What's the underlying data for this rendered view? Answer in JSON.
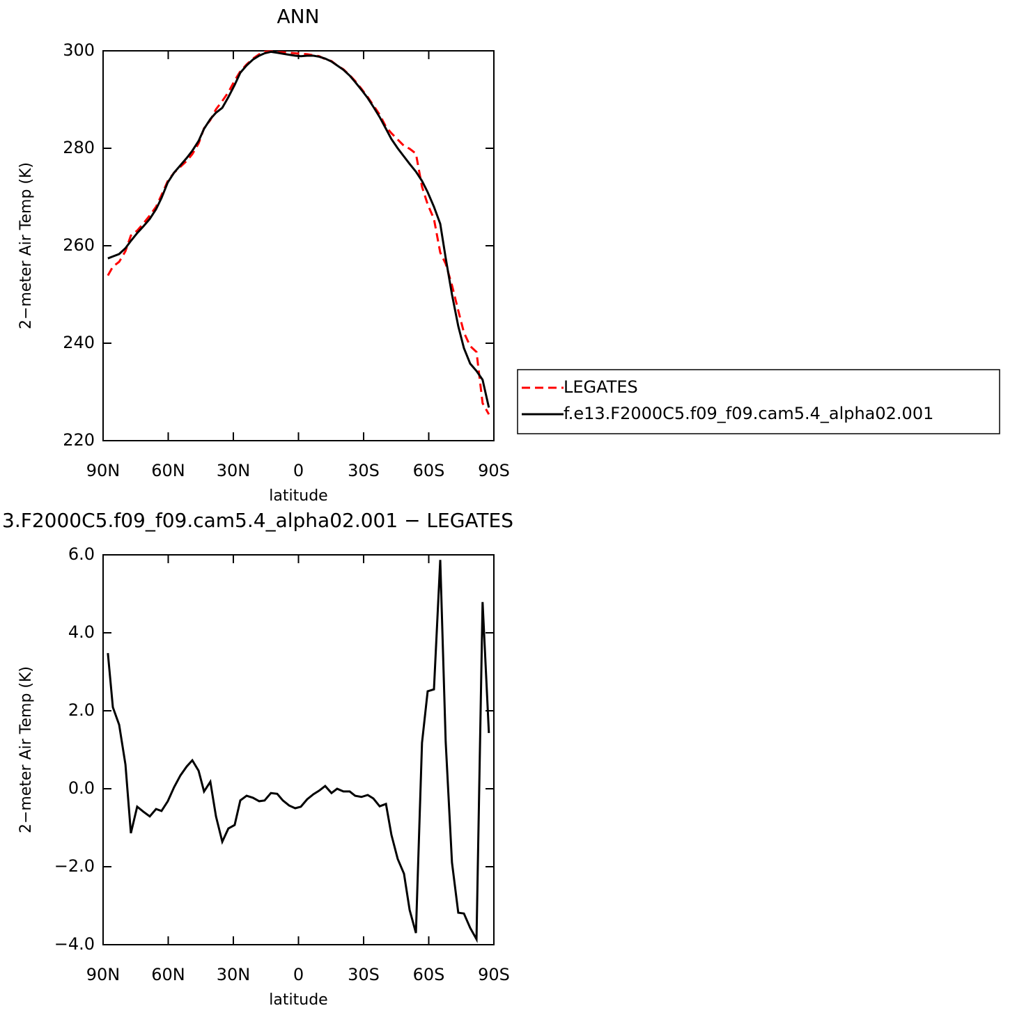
{
  "chart_data": [
    {
      "type": "line",
      "title": "ANN",
      "xlabel": "latitude",
      "ylabel": "2−meter Air Temp (K)",
      "xlim": [
        90,
        -90
      ],
      "ylim": [
        220,
        300
      ],
      "xticks": [
        {
          "value": 90,
          "label": "90N"
        },
        {
          "value": 60,
          "label": "60N"
        },
        {
          "value": 30,
          "label": "30N"
        },
        {
          "value": 0,
          "label": "0"
        },
        {
          "value": -30,
          "label": "30S"
        },
        {
          "value": -60,
          "label": "60S"
        },
        {
          "value": -90,
          "label": "90S"
        }
      ],
      "yticks": [
        220,
        240,
        260,
        280,
        300
      ],
      "legend": "right",
      "x": [
        87.8,
        85.5,
        82.6,
        79.7,
        77.2,
        74.3,
        71.4,
        68.5,
        65.6,
        63.1,
        60.2,
        57.3,
        54.4,
        51.5,
        48.9,
        46.0,
        43.5,
        40.6,
        38.0,
        35.1,
        32.3,
        29.4,
        26.8,
        23.9,
        21.0,
        18.1,
        15.6,
        12.7,
        9.8,
        7.2,
        4.3,
        1.5,
        -1.1,
        -4.0,
        -6.9,
        -9.5,
        -12.3,
        -15.2,
        -17.8,
        -20.7,
        -23.6,
        -26.1,
        -29.0,
        -31.9,
        -34.5,
        -37.4,
        -40.3,
        -42.8,
        -45.7,
        -48.6,
        -51.2,
        -54.1,
        -56.9,
        -59.5,
        -62.4,
        -65.3,
        -67.8,
        -70.7,
        -73.6,
        -76.2,
        -79.1,
        -82.0,
        -84.8,
        -87.7
      ],
      "series": [
        {
          "name": "LEGATES",
          "color": "#ff0000",
          "dashed": true,
          "values": [
            253.9,
            255.7,
            256.7,
            258.9,
            262.1,
            263.1,
            264.6,
            266.2,
            268.0,
            270.4,
            273.3,
            275.0,
            276.2,
            277.4,
            278.8,
            281.0,
            284.1,
            285.8,
            288.0,
            289.7,
            291.5,
            293.9,
            295.8,
            297.2,
            298.4,
            299.3,
            299.8,
            299.9,
            299.7,
            299.7,
            299.6,
            299.5,
            299.4,
            299.3,
            299.1,
            298.9,
            298.3,
            297.9,
            297.0,
            296.2,
            295.0,
            293.8,
            292.2,
            290.5,
            288.8,
            286.9,
            284.4,
            283.1,
            281.8,
            280.5,
            279.9,
            278.9,
            272.1,
            268.5,
            265.5,
            258.6,
            256.3,
            251.9,
            246.7,
            242.2,
            239.4,
            238.2,
            227.7,
            225.4
          ]
        },
        {
          "name": "f.e13.F2000C5.f09_f09.cam5.4_alpha02.001",
          "color": "#000000",
          "dashed": false,
          "values": [
            257.4,
            257.8,
            258.3,
            259.5,
            261.0,
            262.6,
            264.0,
            265.5,
            267.5,
            269.8,
            273.0,
            275.0,
            276.5,
            278.0,
            279.5,
            281.5,
            284.0,
            286.0,
            287.3,
            288.3,
            290.5,
            293.0,
            295.5,
            297.0,
            298.2,
            299.0,
            299.5,
            299.8,
            299.6,
            299.4,
            299.2,
            299.0,
            298.9,
            299.0,
            299.0,
            298.8,
            298.4,
            297.8,
            297.0,
            296.1,
            294.9,
            293.6,
            292.0,
            290.3,
            288.5,
            286.4,
            284.0,
            281.9,
            280.0,
            278.3,
            276.8,
            275.2,
            273.3,
            271.0,
            268.0,
            264.5,
            257.5,
            250.0,
            243.5,
            239.0,
            235.8,
            234.3,
            232.5,
            226.8
          ]
        }
      ]
    },
    {
      "type": "line",
      "title": "3.F2000C5.f09_f09.cam5.4_alpha02.001 − LEGATES",
      "xlabel": "latitude",
      "ylabel": "2−meter Air Temp (K)",
      "xlim": [
        90,
        -90
      ],
      "ylim": [
        -4,
        6
      ],
      "xticks": [
        {
          "value": 90,
          "label": "90N"
        },
        {
          "value": 60,
          "label": "60N"
        },
        {
          "value": 30,
          "label": "30N"
        },
        {
          "value": 0,
          "label": "0"
        },
        {
          "value": -30,
          "label": "30S"
        },
        {
          "value": -60,
          "label": "60S"
        },
        {
          "value": -90,
          "label": "90S"
        }
      ],
      "yticks": [
        {
          "value": -4,
          "label": "−4.0"
        },
        {
          "value": -2,
          "label": "−2.0"
        },
        {
          "value": 0,
          "label": "0.0"
        },
        {
          "value": 2,
          "label": "2.0"
        },
        {
          "value": 4,
          "label": "4.0"
        },
        {
          "value": 6,
          "label": "6.0"
        }
      ],
      "x": [
        87.8,
        85.5,
        82.6,
        79.7,
        77.2,
        74.3,
        71.4,
        68.5,
        65.6,
        63.1,
        60.2,
        57.3,
        54.4,
        51.5,
        48.9,
        46.0,
        43.5,
        40.6,
        38.0,
        35.1,
        32.3,
        29.4,
        26.8,
        23.9,
        21.0,
        18.1,
        15.6,
        12.7,
        9.8,
        7.2,
        4.3,
        1.5,
        -1.1,
        -4.0,
        -6.9,
        -9.5,
        -12.3,
        -15.2,
        -17.8,
        -20.7,
        -23.6,
        -26.1,
        -29.0,
        -31.9,
        -34.5,
        -37.4,
        -40.3,
        -42.8,
        -45.7,
        -48.6,
        -51.2,
        -54.1,
        -56.9,
        -59.5,
        -62.4,
        -65.3,
        -67.8,
        -70.7,
        -73.6,
        -76.2,
        -79.1,
        -82.0,
        -84.8,
        -87.7
      ],
      "color": "#000000",
      "values": [
        3.48,
        2.09,
        1.64,
        0.62,
        -1.14,
        -0.46,
        -0.59,
        -0.71,
        -0.52,
        -0.57,
        -0.32,
        0.04,
        0.34,
        0.57,
        0.73,
        0.46,
        -0.07,
        0.18,
        -0.71,
        -1.36,
        -1.02,
        -0.93,
        -0.3,
        -0.18,
        -0.23,
        -0.32,
        -0.3,
        -0.11,
        -0.13,
        -0.3,
        -0.43,
        -0.5,
        -0.46,
        -0.27,
        -0.14,
        -0.05,
        0.07,
        -0.11,
        0.0,
        -0.07,
        -0.07,
        -0.18,
        -0.21,
        -0.16,
        -0.25,
        -0.45,
        -0.39,
        -1.18,
        -1.8,
        -2.18,
        -3.11,
        -3.7,
        1.18,
        2.5,
        2.55,
        5.87,
        1.21,
        -1.89,
        -3.18,
        -3.2,
        -3.57,
        -3.86,
        4.79,
        1.43
      ]
    }
  ]
}
